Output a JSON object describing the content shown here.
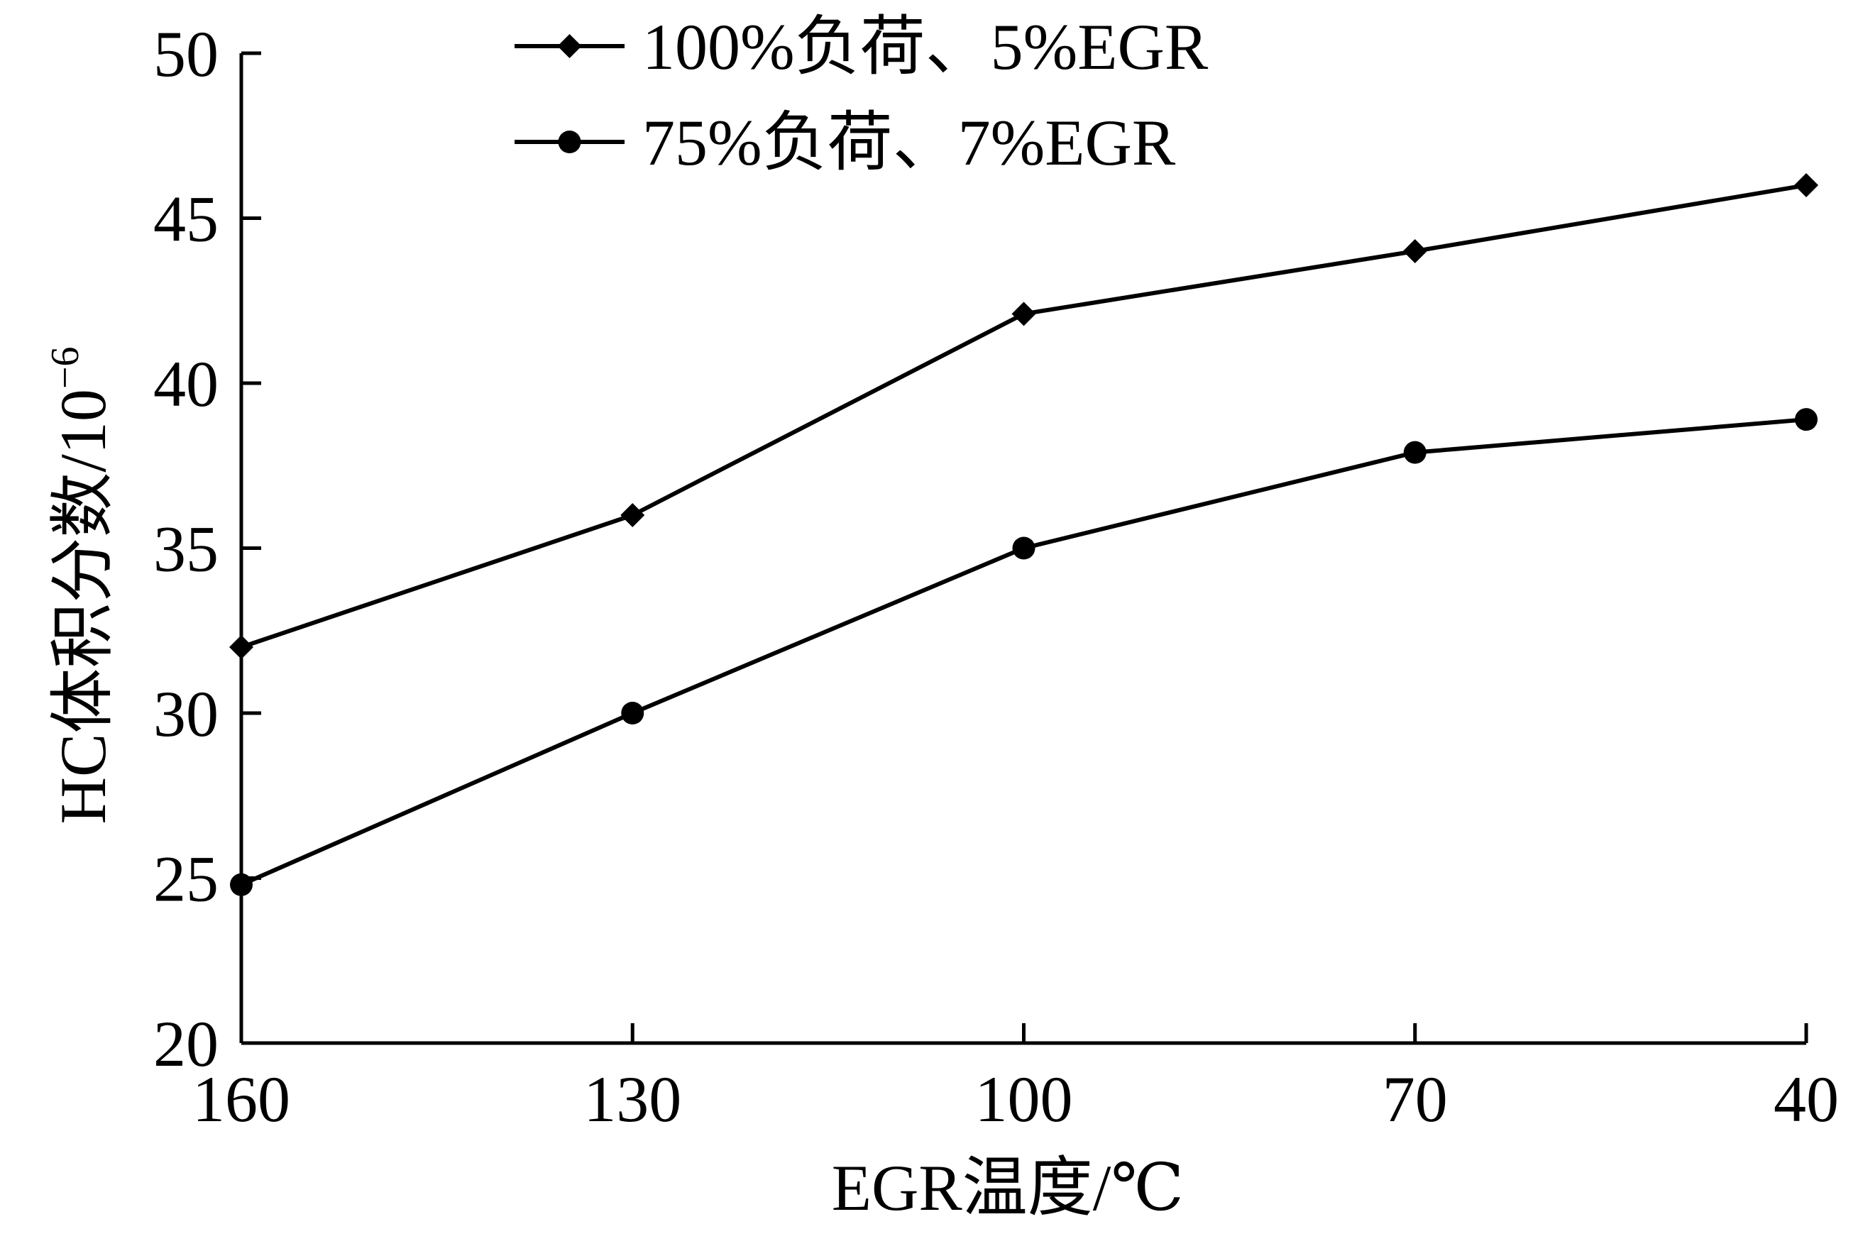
{
  "chart_data": {
    "type": "line",
    "title": "",
    "xlabel": "EGR温度/℃",
    "ylabel": "HC体积分数/10",
    "ylabel_superscript": "−6",
    "categories": [
      "160",
      "130",
      "100",
      "70",
      "40"
    ],
    "x": [
      160,
      130,
      100,
      70,
      40
    ],
    "ylim": [
      20,
      50
    ],
    "yticks": [
      20,
      25,
      30,
      35,
      40,
      45,
      50
    ],
    "grid": false,
    "legend_position": "top",
    "series": [
      {
        "name": "100%负荷、5%EGR",
        "marker": "diamond",
        "values": [
          32.0,
          36.0,
          42.1,
          44.0,
          46.0
        ]
      },
      {
        "name": "75%负荷、7%EGR",
        "marker": "circle",
        "values": [
          24.8,
          30.0,
          35.0,
          37.9,
          38.9
        ]
      }
    ]
  },
  "colors": {
    "line": "#000000",
    "background": "#ffffff"
  }
}
